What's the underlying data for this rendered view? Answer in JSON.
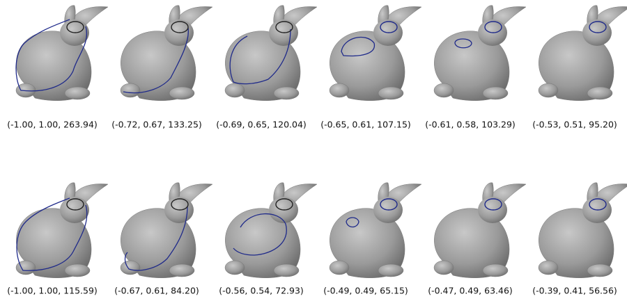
{
  "figure": {
    "rows": [
      [
        "(-1.00, 1.00, 263.94)",
        "(-0.72, 0.67, 133.25)",
        "(-0.69, 0.65, 120.04)",
        "(-0.65, 0.61, 107.15)",
        "(-0.61, 0.58, 103.29)",
        "(-0.53, 0.51, 95.20)"
      ],
      [
        "(-1.00, 1.00, 115.59)",
        "(-0.67, 0.61, 84.20)",
        "(-0.56, 0.54, 72.93)",
        "(-0.49, 0.49, 65.15)",
        "(-0.47, 0.49, 63.46)",
        "(-0.39, 0.41, 56.56)"
      ]
    ]
  }
}
